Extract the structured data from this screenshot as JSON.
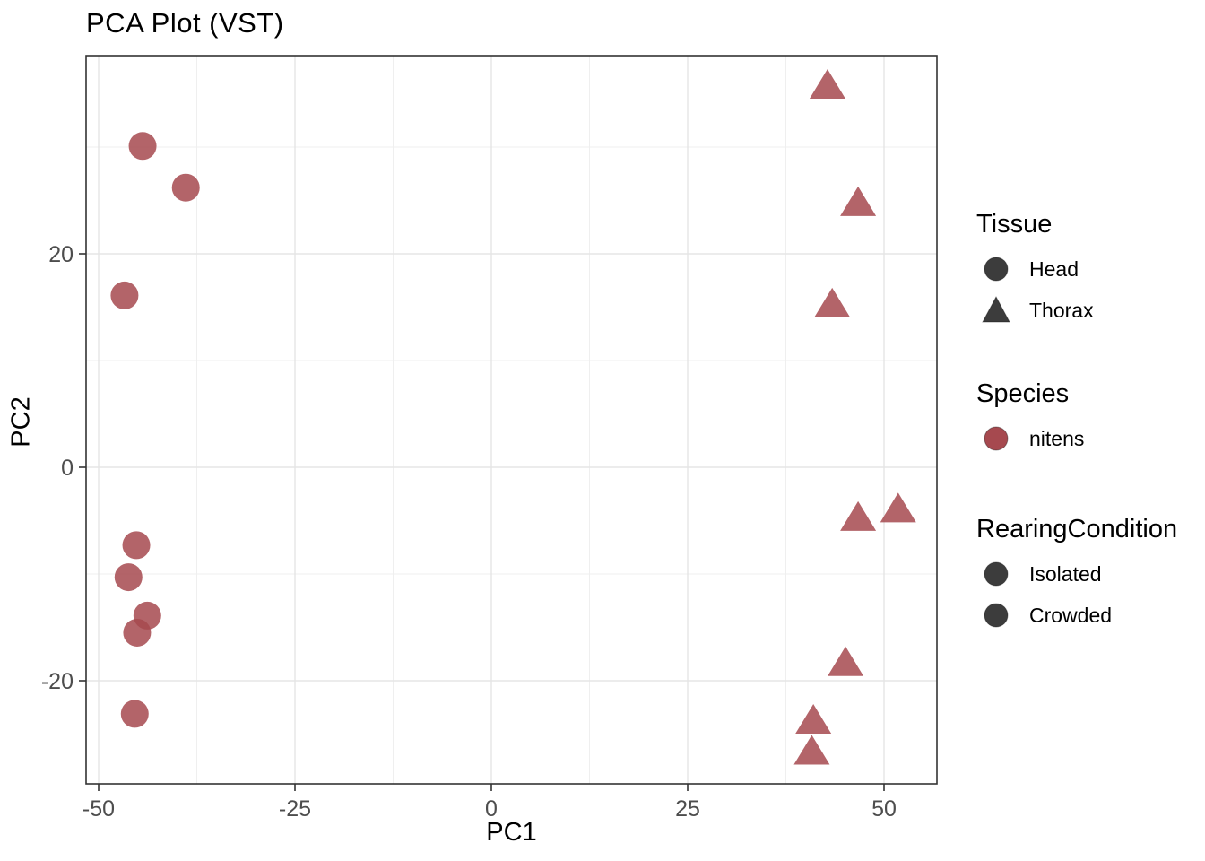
{
  "title": "PCA Plot (VST)",
  "chart_data": {
    "type": "scatter",
    "title": "PCA Plot (VST)",
    "xlabel": "PC1",
    "ylabel": "PC2",
    "xlim": [
      -51.6,
      56.7
    ],
    "ylim": [
      -29.7,
      38.6
    ],
    "x_ticks": [
      -50,
      -25,
      0,
      25,
      50
    ],
    "y_ticks": [
      -20,
      0,
      20
    ],
    "x_minor_ticks": [
      -37.5,
      -12.5,
      12.5,
      37.5
    ],
    "y_minor_ticks": [
      -10,
      10,
      30
    ],
    "grid": "major+minor",
    "legend_position": "right",
    "point_color": "#A6494F",
    "point_opacity": 0.85,
    "series": [
      {
        "name": "Head",
        "shape": "circle",
        "color": "#A6494F",
        "points": [
          [
            -44.4,
            30.1
          ],
          [
            -38.9,
            26.2
          ],
          [
            -46.7,
            16.1
          ],
          [
            -45.2,
            -7.3
          ],
          [
            -46.2,
            -10.3
          ],
          [
            -43.8,
            -13.9
          ],
          [
            -45.1,
            -15.5
          ],
          [
            -45.4,
            -23.1
          ]
        ]
      },
      {
        "name": "Thorax",
        "shape": "triangle",
        "color": "#A6494F",
        "points": [
          [
            42.8,
            35.8
          ],
          [
            46.7,
            24.8
          ],
          [
            43.4,
            15.3
          ],
          [
            51.8,
            -3.9
          ],
          [
            46.7,
            -4.7
          ],
          [
            45.1,
            -18.3
          ],
          [
            41.0,
            -23.7
          ],
          [
            40.8,
            -26.6
          ]
        ]
      }
    ]
  },
  "legend": {
    "groups": [
      {
        "key": "tissue",
        "title": "Tissue",
        "items": [
          {
            "label": "Head",
            "shape": "circle",
            "color": "#3C3C3C"
          },
          {
            "label": "Thorax",
            "shape": "triangle",
            "color": "#3C3C3C"
          }
        ]
      },
      {
        "key": "species",
        "title": "Species",
        "items": [
          {
            "label": "nitens",
            "shape": "circle",
            "color": "#A6494F"
          }
        ]
      },
      {
        "key": "rearing",
        "title": "RearingCondition",
        "items": [
          {
            "label": "Isolated",
            "shape": "circle",
            "color": "#3C3C3C"
          },
          {
            "label": "Crowded",
            "shape": "circle",
            "color": "#3C3C3C"
          }
        ]
      }
    ]
  },
  "style": {
    "panel_border_color": "#333333",
    "major_grid_color": "#E5E5E5",
    "minor_grid_color": "#EFEFEF",
    "tick_color": "#333333",
    "axis_text_color": "#4D4D4D"
  }
}
